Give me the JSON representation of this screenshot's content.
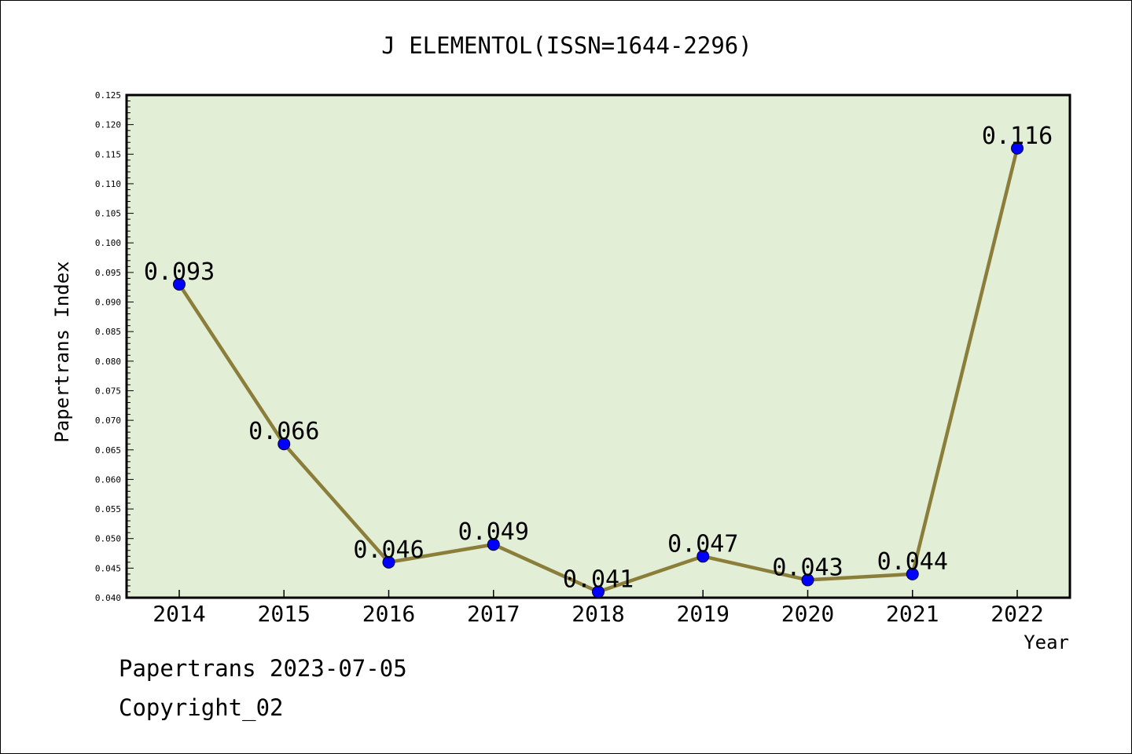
{
  "chart_data": {
    "type": "line",
    "title": "J ELEMENTOL(ISSN=1644-2296)",
    "xlabel": "Year",
    "ylabel": "Papertrans Index",
    "categories": [
      "2014",
      "2015",
      "2016",
      "2017",
      "2018",
      "2019",
      "2020",
      "2021",
      "2022"
    ],
    "values": [
      0.093,
      0.066,
      0.046,
      0.049,
      0.041,
      0.047,
      0.043,
      0.044,
      0.116
    ],
    "data_labels": [
      "0.093",
      "0.066",
      "0.046",
      "0.049",
      "0.041",
      "0.047",
      "0.043",
      "0.044",
      "0.116"
    ],
    "ylim": [
      0.04,
      0.125
    ],
    "yticks": [
      "0.040",
      "0.045",
      "0.050",
      "0.055",
      "0.060",
      "0.065",
      "0.070",
      "0.075",
      "0.080",
      "0.085",
      "0.090",
      "0.095",
      "0.100",
      "0.105",
      "0.110",
      "0.115",
      "0.120",
      "0.125"
    ],
    "grid": false,
    "legend": "none",
    "colors": {
      "plot_background": "#e2efd6",
      "line": "#8b7e3a",
      "marker": "#0000ff"
    }
  },
  "footer": {
    "date_line": "Papertrans 2023-07-05",
    "copyright": "Copyright_02"
  }
}
